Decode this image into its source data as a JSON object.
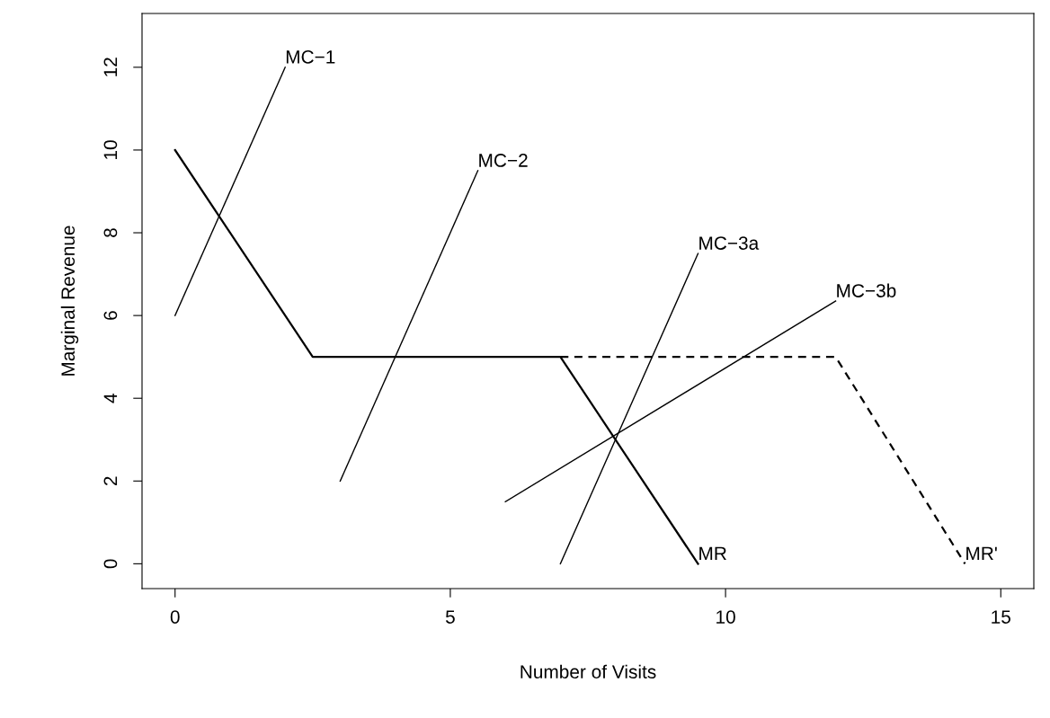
{
  "chart_data": {
    "type": "line",
    "xlabel": "Number of Visits",
    "ylabel": "Marginal Revenue",
    "xlim": [
      -0.6,
      15.6
    ],
    "ylim": [
      -0.6,
      13.3
    ],
    "xticks": [
      0,
      5,
      10,
      15
    ],
    "yticks": [
      0,
      2,
      4,
      6,
      8,
      10,
      12
    ],
    "grid": false,
    "legend": false,
    "marker": "none",
    "series": [
      {
        "name": "MC−1",
        "color": "#000000",
        "line_style": "solid",
        "x": [
          0,
          2
        ],
        "values": [
          6,
          12
        ]
      },
      {
        "name": "MC−2",
        "color": "#000000",
        "line_style": "solid",
        "x": [
          3,
          5.5
        ],
        "values": [
          2,
          9.5
        ]
      },
      {
        "name": "MC−3a",
        "color": "#000000",
        "line_style": "solid",
        "x": [
          7,
          9.5
        ],
        "values": [
          0,
          7.5
        ]
      },
      {
        "name": "MC−3b",
        "color": "#000000",
        "line_style": "solid",
        "x": [
          6,
          12
        ],
        "values": [
          1.5,
          6.35
        ]
      },
      {
        "name": "MR'",
        "color": "#000000",
        "line_style": "dashed",
        "x": [
          7,
          12,
          14.35
        ],
        "values": [
          5,
          5,
          0
        ]
      },
      {
        "name": "MR",
        "color": "#000000",
        "line_style": "solid",
        "x": [
          0,
          2.5,
          7,
          9.5
        ],
        "values": [
          10,
          5,
          5,
          0
        ]
      }
    ]
  }
}
